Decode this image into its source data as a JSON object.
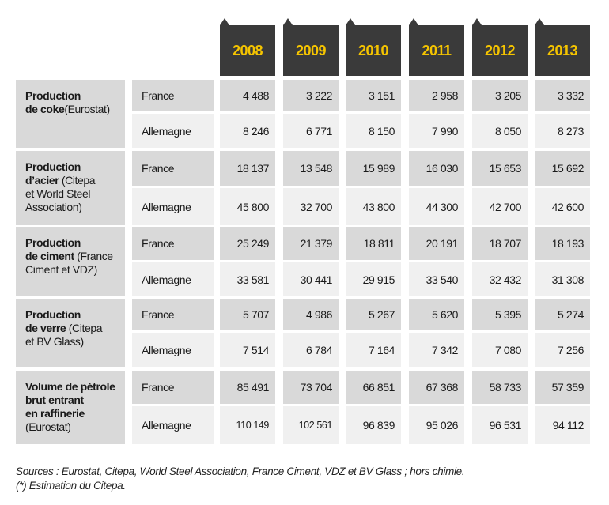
{
  "years": [
    "2008",
    "2009",
    "2010",
    "2011",
    "2012",
    "2013"
  ],
  "groups": [
    {
      "title": "Production\nde coke",
      "source": "(Eurostat)",
      "rows": [
        {
          "country": "France",
          "values": [
            "4 488",
            "3 222",
            "3 151",
            "2 958",
            "3 205",
            "3 332"
          ]
        },
        {
          "country": "Allemagne",
          "values": [
            "8 246",
            "6 771",
            "8 150",
            "7 990",
            "8 050",
            "8 273"
          ]
        }
      ]
    },
    {
      "title": "Production\nd’acier",
      "source": " (Citepa\net World Steel\nAssociation)",
      "rows": [
        {
          "country": "France",
          "values": [
            "18 137",
            "13 548",
            "15 989",
            "16 030",
            "15 653",
            "15 692"
          ]
        },
        {
          "country": "Allemagne",
          "values": [
            "45 800",
            "32 700",
            "43 800",
            "44 300",
            "42 700",
            "42 600"
          ]
        }
      ]
    },
    {
      "title": "Production\nde ciment",
      "source": " (France\nCiment et VDZ)",
      "rows": [
        {
          "country": "France",
          "values": [
            "25 249",
            "21 379",
            "18 811",
            "20 191",
            "18 707",
            "18 193"
          ]
        },
        {
          "country": "Allemagne",
          "values": [
            "33 581",
            "30 441",
            "29 915",
            "33 540",
            "32 432",
            "31 308"
          ]
        }
      ]
    },
    {
      "title": "Production\nde verre",
      "source": " (Citepa\net BV Glass)",
      "rows": [
        {
          "country": "France",
          "values": [
            "5 707",
            "4 986",
            "5 267",
            "5 620",
            "5 395",
            "5 274"
          ]
        },
        {
          "country": "Allemagne",
          "values": [
            "7 514",
            "6 784",
            "7 164",
            "7 342",
            "7 080",
            "7 256"
          ]
        }
      ]
    },
    {
      "title": "Volume de pétrole\nbrut entrant\nen raffinerie",
      "source": "\n(Eurostat)",
      "rows": [
        {
          "country": "France",
          "values": [
            "85 491",
            "73 704",
            "66 851",
            "67 368",
            "58 733",
            "57 359"
          ]
        },
        {
          "country": "Allemagne",
          "values": [
            "110 149",
            "102 561",
            "96 839",
            "95 026",
            "96 531",
            "94 112"
          ]
        }
      ]
    }
  ],
  "footer": {
    "line1": "Sources : Eurostat, Citepa, World Steel Association, France Ciment, VDZ et BV Glass ; hors chimie.",
    "line2": "(*) Estimation du Citepa."
  },
  "colors": {
    "header_bg": "#3a3a3a",
    "header_text": "#f5c400",
    "cell_dark": "#d9d9d9",
    "cell_light": "#f0f0f0"
  }
}
